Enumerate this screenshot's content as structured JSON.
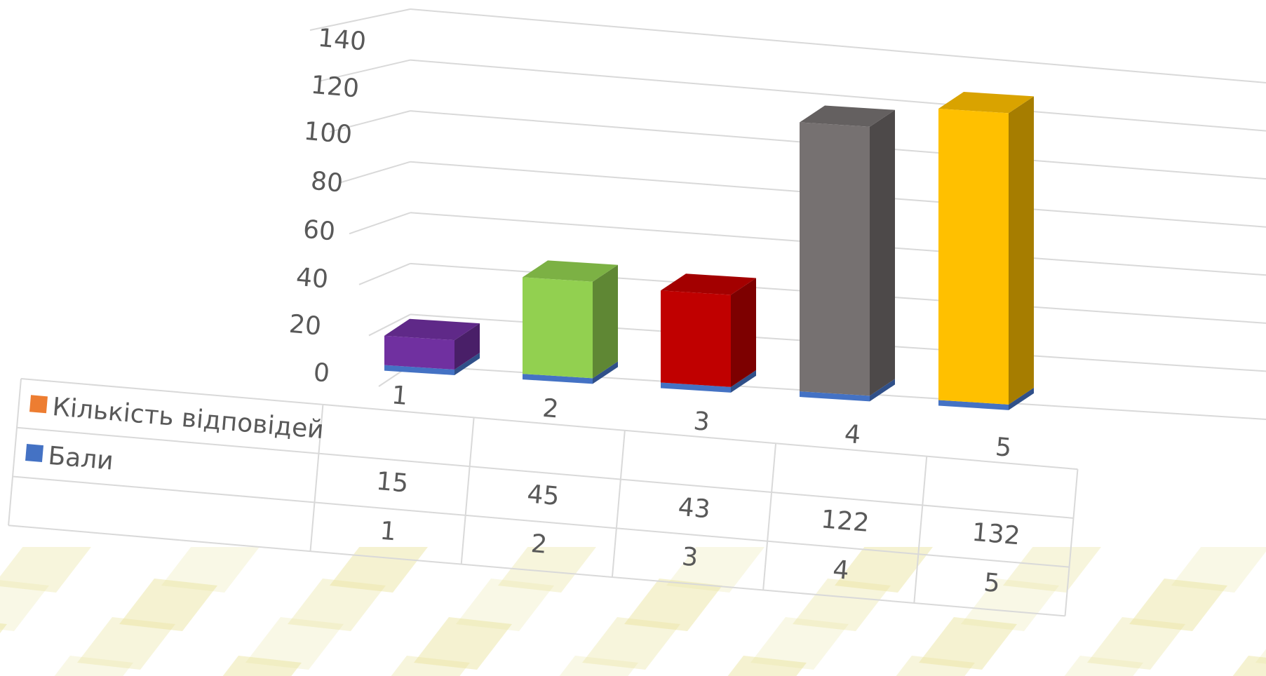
{
  "chart_data": {
    "type": "bar",
    "style": "3d-column-with-data-table",
    "categories": [
      "1",
      "2",
      "3",
      "4",
      "5"
    ],
    "series": [
      {
        "name": "Кількість відповідей",
        "values": [
          15,
          45,
          43,
          122,
          132
        ],
        "color": "#ED7D31"
      },
      {
        "name": "Бали",
        "values": [
          1,
          2,
          3,
          4,
          5
        ],
        "color": "#4472C4"
      }
    ],
    "bar_colors": [
      "#7030A0",
      "#92D050",
      "#C00000",
      "#767171",
      "#FFC000"
    ],
    "y_ticks": [
      "0",
      "20",
      "40",
      "60",
      "80",
      "100",
      "120",
      "140"
    ],
    "ylim": [
      0,
      140
    ],
    "grid": true,
    "legend": "data-table-left"
  },
  "background": {
    "accent": "#E8E29A"
  }
}
